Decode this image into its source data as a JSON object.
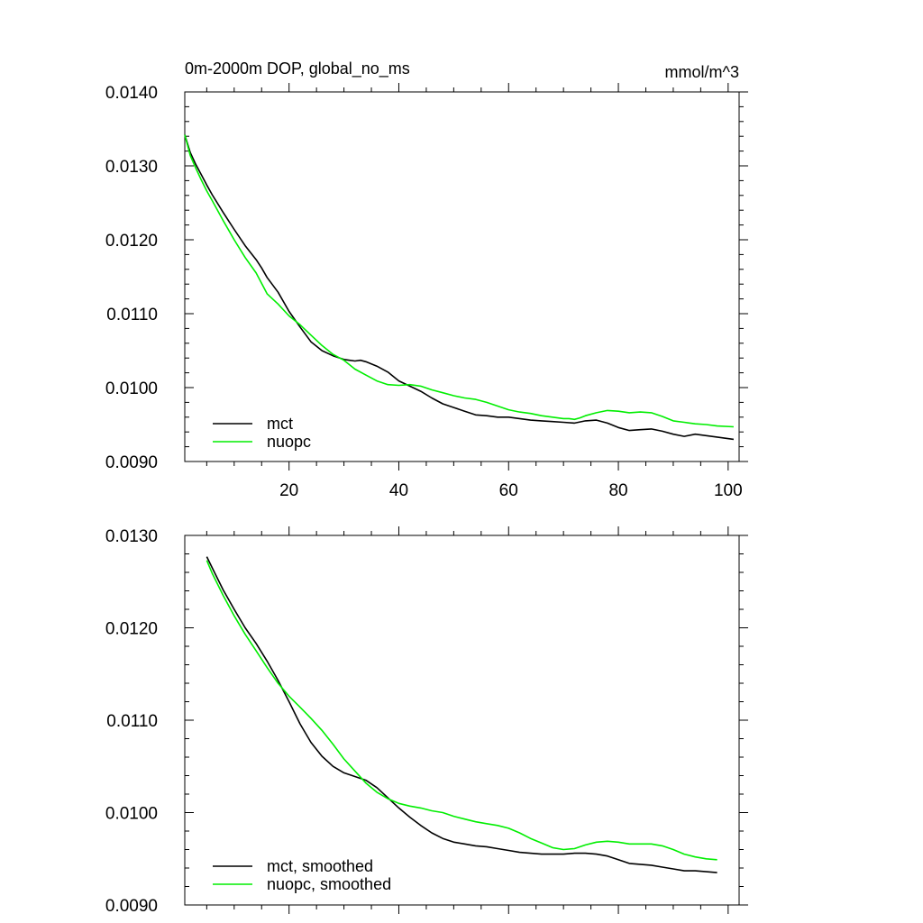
{
  "chart_data": [
    {
      "type": "line",
      "title": "0m-2000m DOP, global_no_ms",
      "units": "mmol/m^3",
      "xlim": [
        1,
        102
      ],
      "ylim": [
        0.009,
        0.014
      ],
      "x_ticks": [
        20,
        40,
        60,
        80,
        100
      ],
      "x_tick_labels": [
        "20",
        "40",
        "60",
        "80",
        "100"
      ],
      "y_ticks": [
        0.009,
        0.01,
        0.011,
        0.012,
        0.013,
        0.014
      ],
      "y_tick_labels": [
        "0.0090",
        "0.0100",
        "0.0110",
        "0.0120",
        "0.0130",
        "0.0140"
      ],
      "legend_position": "bottom-left",
      "grid": false,
      "series": [
        {
          "name": "mct",
          "color": "#000000",
          "x": [
            1,
            2,
            3,
            4,
            5,
            6,
            8,
            10,
            12,
            14,
            15,
            16,
            18,
            20,
            22,
            24,
            26,
            28,
            30,
            31,
            32,
            33,
            34,
            36,
            38,
            40,
            42,
            44,
            46,
            48,
            50,
            52,
            54,
            56,
            58,
            60,
            62,
            64,
            66,
            68,
            70,
            72,
            74,
            76,
            78,
            80,
            82,
            84,
            86,
            88,
            90,
            92,
            94,
            96,
            98,
            101
          ],
          "y": [
            0.01342,
            0.01318,
            0.01302,
            0.01288,
            0.01274,
            0.01261,
            0.01237,
            0.01214,
            0.01192,
            0.01173,
            0.01162,
            0.01149,
            0.01129,
            0.01103,
            0.01082,
            0.01062,
            0.0105,
            0.01043,
            0.01038,
            0.01037,
            0.01036,
            0.01037,
            0.01035,
            0.01029,
            0.01021,
            0.01009,
            0.01002,
            0.00995,
            0.00986,
            0.00978,
            0.00973,
            0.00968,
            0.00963,
            0.00962,
            0.0096,
            0.0096,
            0.00958,
            0.00956,
            0.00955,
            0.00954,
            0.00953,
            0.00952,
            0.00955,
            0.00956,
            0.00952,
            0.00946,
            0.00942,
            0.00943,
            0.00944,
            0.00941,
            0.00937,
            0.00934,
            0.00937,
            0.00935,
            0.00933,
            0.0093
          ]
        },
        {
          "name": "nuopc",
          "color": "#00ee00",
          "x": [
            1,
            2,
            3,
            4,
            5,
            6,
            8,
            10,
            12,
            14,
            16,
            18,
            20,
            22,
            24,
            26,
            28,
            30,
            32,
            34,
            36,
            38,
            40,
            42,
            44,
            46,
            48,
            50,
            52,
            54,
            56,
            58,
            60,
            62,
            64,
            66,
            68,
            70,
            71,
            72,
            73,
            74,
            76,
            78,
            80,
            82,
            84,
            86,
            88,
            90,
            92,
            94,
            96,
            98,
            101
          ],
          "y": [
            0.01342,
            0.01314,
            0.01297,
            0.01281,
            0.01266,
            0.01253,
            0.01226,
            0.012,
            0.01176,
            0.01155,
            0.01127,
            0.01113,
            0.01097,
            0.01085,
            0.01071,
            0.01057,
            0.01045,
            0.01037,
            0.01025,
            0.01017,
            0.01009,
            0.01004,
            0.01003,
            0.01004,
            0.01002,
            0.00997,
            0.00993,
            0.00989,
            0.00986,
            0.00984,
            0.0098,
            0.00975,
            0.0097,
            0.00967,
            0.00965,
            0.00962,
            0.0096,
            0.00958,
            0.00958,
            0.00957,
            0.00959,
            0.00962,
            0.00966,
            0.00969,
            0.00968,
            0.00966,
            0.00967,
            0.00966,
            0.00961,
            0.00955,
            0.00953,
            0.00951,
            0.0095,
            0.00948,
            0.00947
          ]
        }
      ]
    },
    {
      "type": "line",
      "xlim": [
        1,
        102
      ],
      "ylim": [
        0.009,
        0.013
      ],
      "x_ticks": [
        20,
        40,
        60,
        80,
        100
      ],
      "y_ticks": [
        0.009,
        0.01,
        0.011,
        0.012,
        0.013
      ],
      "y_tick_labels": [
        "0.0090",
        "0.0100",
        "0.0110",
        "0.0120",
        "0.0130"
      ],
      "legend_position": "bottom-left",
      "grid": false,
      "series": [
        {
          "name": "mct, smoothed",
          "color": "#000000",
          "x": [
            5,
            6,
            8,
            10,
            12,
            14,
            16,
            18,
            20,
            22,
            24,
            26,
            28,
            30,
            32,
            34,
            36,
            38,
            40,
            42,
            44,
            46,
            48,
            50,
            52,
            54,
            56,
            58,
            60,
            62,
            64,
            66,
            68,
            70,
            72,
            74,
            76,
            78,
            80,
            82,
            84,
            86,
            88,
            90,
            92,
            94,
            96,
            98
          ],
          "y": [
            0.01277,
            0.01265,
            0.01241,
            0.0122,
            0.012,
            0.01183,
            0.01164,
            0.01143,
            0.0112,
            0.01096,
            0.01076,
            0.01061,
            0.0105,
            0.01043,
            0.01039,
            0.01035,
            0.01027,
            0.01016,
            0.01005,
            0.00995,
            0.00986,
            0.00978,
            0.00972,
            0.00968,
            0.00966,
            0.00964,
            0.00963,
            0.00961,
            0.00959,
            0.00957,
            0.00956,
            0.00955,
            0.00955,
            0.00955,
            0.00956,
            0.00956,
            0.00955,
            0.00953,
            0.00949,
            0.00945,
            0.00944,
            0.00943,
            0.00941,
            0.00939,
            0.00937,
            0.00937,
            0.00936,
            0.00935
          ]
        },
        {
          "name": "nuopc, smoothed",
          "color": "#00ee00",
          "x": [
            5,
            6,
            8,
            10,
            12,
            14,
            16,
            18,
            20,
            22,
            24,
            26,
            28,
            30,
            32,
            34,
            36,
            38,
            40,
            42,
            44,
            46,
            48,
            50,
            52,
            54,
            56,
            58,
            60,
            62,
            64,
            66,
            68,
            70,
            72,
            74,
            76,
            78,
            80,
            82,
            84,
            86,
            88,
            90,
            92,
            94,
            96,
            98
          ],
          "y": [
            0.01273,
            0.01259,
            0.01235,
            0.01213,
            0.01193,
            0.01175,
            0.01157,
            0.0114,
            0.01126,
            0.01114,
            0.01102,
            0.01089,
            0.01074,
            0.01058,
            0.01045,
            0.01032,
            0.01022,
            0.01015,
            0.0101,
            0.01007,
            0.01005,
            0.01002,
            0.01,
            0.00996,
            0.00993,
            0.0099,
            0.00988,
            0.00986,
            0.00983,
            0.00978,
            0.00972,
            0.00967,
            0.00962,
            0.0096,
            0.00961,
            0.00965,
            0.00968,
            0.00969,
            0.00968,
            0.00966,
            0.00966,
            0.00966,
            0.00964,
            0.0096,
            0.00955,
            0.00952,
            0.0095,
            0.00949
          ]
        }
      ]
    }
  ]
}
